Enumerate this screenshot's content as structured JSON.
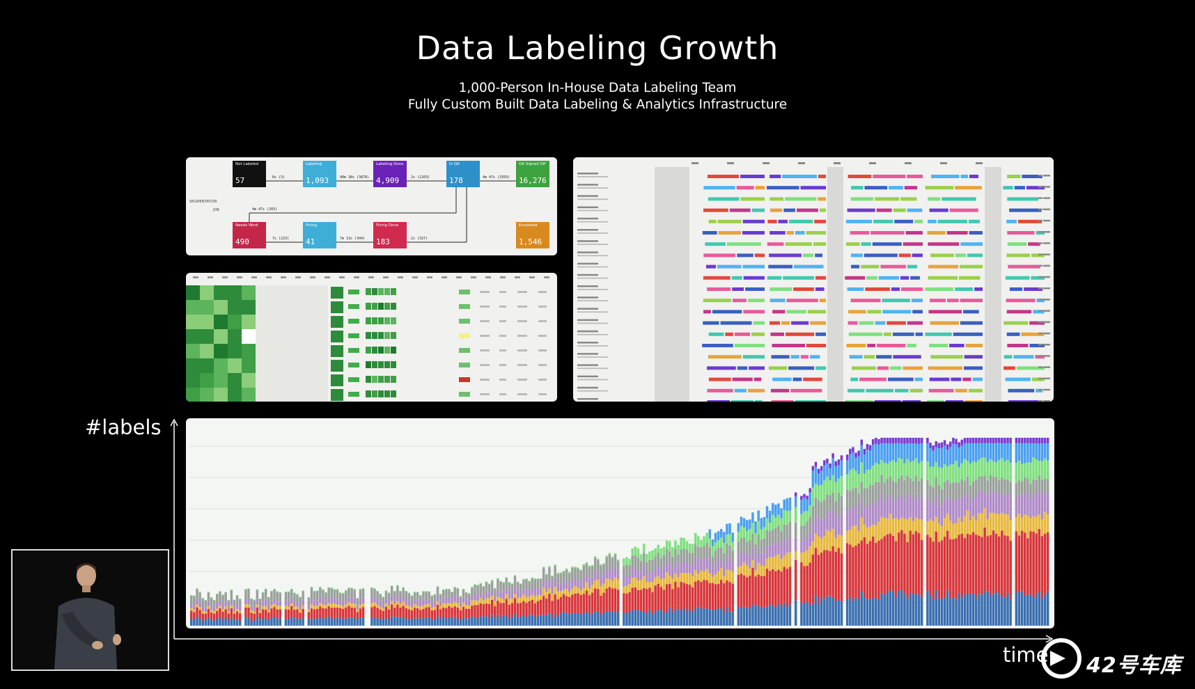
{
  "slide": {
    "title": "Data Labeling Growth",
    "subtitle_1": "1,000-Person In-House Data Labeling Team",
    "subtitle_2": "Fully Custom Built Data Labeling & Analytics Infrastructure"
  },
  "flow_panel": {
    "row_label_1": "SEGMENTATION",
    "row_label_2": "JOB",
    "nodes": [
      {
        "label": "Not Labeled",
        "value": "57",
        "color": "#111111"
      },
      {
        "label": "Labeling",
        "value": "1,093",
        "color": "#3eaed6"
      },
      {
        "label": "Labeling Done",
        "value": "4,909",
        "color": "#6a22b8"
      },
      {
        "label": "In QA",
        "value": "178",
        "color": "#2f8fc9"
      },
      {
        "label": "QA Signed Off",
        "value": "16,276",
        "color": "#3ea23e"
      },
      {
        "label": "Needs Work",
        "value": "490",
        "color": "#c4264a"
      },
      {
        "label": "Fixing",
        "value": "41",
        "color": "#3eaed6"
      },
      {
        "label": "Fixing Done",
        "value": "183",
        "color": "#d02a4e"
      },
      {
        "label": "Escalated",
        "value": "1,546",
        "color": "#d98a1e"
      }
    ],
    "edges": [
      "8s (3)",
      "40m 38s (3878)",
      "2s (1203)",
      "4m 47s (3393)",
      "4m 47s (203)",
      "7s (223)",
      "7m 13s (344)",
      "2s (327)"
    ]
  },
  "chart_data": {
    "type": "bar",
    "stacked": true,
    "xlabel": "time",
    "ylabel": "#labels",
    "grid": true,
    "legend": "none",
    "series_colors": [
      "#3a6fb0",
      "#d8353a",
      "#e8b83a",
      "#b08ac8",
      "#9aa09c",
      "#7fe07f",
      "#4a9ff0",
      "#7a3bd0"
    ],
    "num_bars": 300
  },
  "icons": {
    "watermark": "42-garage-logo-icon",
    "speaker": "speaker-video-thumbnail"
  },
  "watermark_text": "42号车库"
}
